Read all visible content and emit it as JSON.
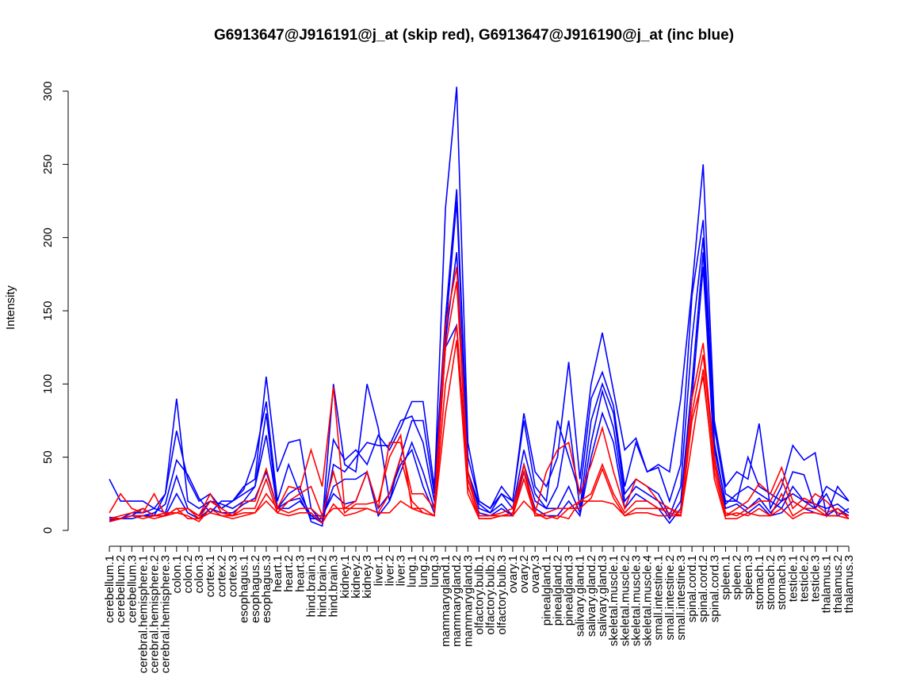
{
  "chart_data": {
    "type": "line",
    "title": "G6913647@J916191@j_at (skip red), G6913647@J916190@j_at (inc blue)",
    "xlabel": "",
    "ylabel": "Intensity",
    "ylim": [
      0,
      300
    ],
    "yticks": [
      0,
      50,
      100,
      150,
      200,
      250,
      300
    ],
    "grid": false,
    "categories": [
      "cerebellum.1",
      "cerebellum.2",
      "cerebellum.3",
      "cerebral.hemisphere.1",
      "cerebral.hemisphere.2",
      "cerebral.hemisphere.3",
      "colon.1",
      "colon.2",
      "colon.3",
      "cortex.1",
      "cortex.2",
      "cortex.3",
      "esophagus.1",
      "esophagus.2",
      "esophagus.3",
      "heart.1",
      "heart.2",
      "heart.3",
      "hind.brain.1",
      "hind.brain.2",
      "hind.brain.3",
      "kidney.1",
      "kidney.2",
      "kidney.3",
      "liver.1",
      "liver.2",
      "liver.3",
      "lung.1",
      "lung.2",
      "lung.3",
      "mammarygland.1",
      "mammarygland.2",
      "mammarygland.3",
      "olfactory.bulb.1",
      "olfactory.bulb.2",
      "olfactory.bulb.3",
      "ovary.1",
      "ovary.2",
      "ovary.3",
      "pinealgland.1",
      "pinealgland.2",
      "pinealgland.3",
      "salivary.gland.1",
      "salivary.gland.2",
      "salivary.gland.3",
      "skeletal.muscle.1",
      "skeletal.muscle.2",
      "skeletal.muscle.3",
      "skeletal.muscle.4",
      "small.intestine.1",
      "small.intestine.2",
      "small.intestine.3",
      "spinal.cord.1",
      "spinal.cord.2",
      "spinal.cord.3",
      "spleen.1",
      "spleen.2",
      "spleen.3",
      "stomach.1",
      "stomach.2",
      "stomach.3",
      "testicle.1",
      "testicle.2",
      "testicle.3",
      "thalamus.1",
      "thalamus.2",
      "thalamus.3"
    ],
    "series": [
      {
        "name": "inc blue 1",
        "color": "#0000ff",
        "values": [
          35,
          20,
          20,
          20,
          15,
          25,
          90,
          20,
          15,
          20,
          15,
          20,
          30,
          35,
          105,
          40,
          60,
          62,
          15,
          5,
          100,
          45,
          40,
          100,
          70,
          20,
          50,
          75,
          75,
          25,
          220,
          303,
          60,
          20,
          15,
          30,
          20,
          80,
          40,
          30,
          50,
          115,
          35,
          100,
          135,
          95,
          55,
          63,
          40,
          45,
          40,
          90,
          165,
          250,
          75,
          30,
          40,
          35,
          73,
          15,
          30,
          58,
          48,
          53,
          10,
          30,
          20
        ]
      },
      {
        "name": "inc blue 2",
        "color": "#0000ff",
        "values": [
          8,
          8,
          10,
          15,
          10,
          25,
          68,
          35,
          20,
          25,
          15,
          20,
          28,
          50,
          88,
          20,
          45,
          25,
          10,
          5,
          62,
          48,
          55,
          45,
          65,
          55,
          70,
          88,
          88,
          30,
          145,
          233,
          50,
          20,
          15,
          25,
          20,
          75,
          30,
          20,
          75,
          50,
          25,
          90,
          108,
          85,
          30,
          60,
          40,
          43,
          20,
          45,
          160,
          212,
          70,
          25,
          20,
          50,
          30,
          25,
          20,
          40,
          38,
          15,
          30,
          25,
          20
        ]
      },
      {
        "name": "inc blue 3",
        "color": "#0000ff",
        "values": [
          7,
          8,
          10,
          10,
          12,
          18,
          48,
          38,
          22,
          12,
          20,
          20,
          25,
          30,
          80,
          15,
          25,
          30,
          6,
          3,
          45,
          40,
          50,
          60,
          58,
          58,
          75,
          78,
          60,
          20,
          135,
          225,
          40,
          18,
          12,
          25,
          15,
          55,
          25,
          15,
          30,
          75,
          15,
          75,
          100,
          80,
          25,
          35,
          30,
          25,
          10,
          30,
          130,
          200,
          60,
          18,
          25,
          30,
          25,
          20,
          15,
          30,
          20,
          15,
          25,
          10,
          15
        ]
      },
      {
        "name": "inc blue 4",
        "color": "#0000ff",
        "values": [
          6,
          8,
          12,
          12,
          15,
          12,
          37,
          15,
          10,
          20,
          18,
          15,
          20,
          30,
          65,
          15,
          20,
          22,
          8,
          8,
          30,
          35,
          35,
          40,
          10,
          20,
          40,
          60,
          40,
          15,
          130,
          190,
          40,
          15,
          12,
          18,
          10,
          45,
          20,
          15,
          15,
          30,
          12,
          60,
          95,
          70,
          20,
          30,
          25,
          20,
          8,
          20,
          100,
          190,
          55,
          20,
          20,
          15,
          22,
          12,
          20,
          25,
          20,
          18,
          15,
          18,
          12
        ]
      },
      {
        "name": "inc blue 5",
        "color": "#0000ff",
        "values": [
          9,
          8,
          8,
          10,
          10,
          10,
          25,
          12,
          8,
          15,
          12,
          12,
          18,
          22,
          40,
          15,
          15,
          20,
          10,
          10,
          25,
          18,
          20,
          40,
          15,
          25,
          45,
          55,
          30,
          12,
          125,
          140,
          35,
          12,
          10,
          15,
          10,
          40,
          15,
          10,
          10,
          20,
          10,
          50,
          80,
          60,
          15,
          25,
          20,
          15,
          5,
          15,
          90,
          180,
          50,
          15,
          18,
          12,
          18,
          10,
          12,
          20,
          15,
          12,
          10,
          15,
          10
        ]
      },
      {
        "name": "skip red 1",
        "color": "#ff0000",
        "values": [
          12,
          25,
          15,
          12,
          25,
          10,
          15,
          15,
          10,
          25,
          12,
          10,
          20,
          20,
          42,
          15,
          30,
          28,
          55,
          30,
          98,
          15,
          20,
          40,
          15,
          60,
          60,
          25,
          25,
          15,
          140,
          180,
          40,
          10,
          10,
          12,
          15,
          45,
          12,
          40,
          55,
          60,
          25,
          45,
          70,
          40,
          15,
          35,
          30,
          20,
          15,
          12,
          90,
          128,
          50,
          10,
          15,
          20,
          32,
          25,
          43,
          20,
          15,
          25,
          20,
          12,
          10
        ]
      },
      {
        "name": "skip red 2",
        "color": "#ff0000",
        "values": [
          8,
          10,
          12,
          15,
          10,
          10,
          12,
          15,
          8,
          20,
          15,
          10,
          15,
          15,
          35,
          12,
          20,
          25,
          30,
          10,
          40,
          12,
          18,
          18,
          20,
          50,
          65,
          15,
          15,
          10,
          125,
          170,
          35,
          10,
          10,
          10,
          12,
          40,
          10,
          12,
          15,
          15,
          20,
          25,
          45,
          25,
          12,
          20,
          20,
          15,
          15,
          10,
          80,
          120,
          45,
          12,
          10,
          15,
          20,
          20,
          35,
          15,
          22,
          18,
          12,
          15,
          8
        ]
      },
      {
        "name": "skip red 3",
        "color": "#ff0000",
        "values": [
          6,
          8,
          10,
          8,
          10,
          12,
          12,
          10,
          6,
          15,
          10,
          10,
          12,
          12,
          25,
          15,
          12,
          15,
          15,
          8,
          15,
          15,
          15,
          15,
          12,
          25,
          50,
          20,
          12,
          10,
          100,
          140,
          30,
          8,
          8,
          10,
          10,
          35,
          10,
          10,
          8,
          15,
          15,
          22,
          42,
          22,
          10,
          15,
          15,
          15,
          12,
          10,
          75,
          105,
          40,
          10,
          12,
          10,
          15,
          10,
          25,
          10,
          15,
          15,
          10,
          10,
          8
        ]
      },
      {
        "name": "skip red 4",
        "color": "#ff0000",
        "values": [
          8,
          8,
          10,
          10,
          8,
          10,
          15,
          8,
          8,
          12,
          10,
          8,
          10,
          12,
          20,
          12,
          10,
          12,
          12,
          5,
          18,
          10,
          12,
          15,
          12,
          12,
          20,
          15,
          12,
          10,
          80,
          130,
          25,
          8,
          8,
          10,
          10,
          20,
          12,
          8,
          10,
          8,
          20,
          20,
          20,
          18,
          10,
          12,
          12,
          10,
          10,
          10,
          60,
          110,
          35,
          8,
          8,
          12,
          10,
          10,
          15,
          8,
          12,
          12,
          10,
          10,
          8
        ]
      }
    ]
  }
}
